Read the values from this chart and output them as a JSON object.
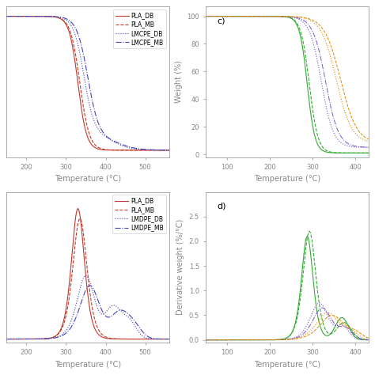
{
  "background_color": "#ffffff",
  "fontsize": 7,
  "tick_fontsize": 6,
  "legend_fontsize": 5.5,
  "subplot_a": {
    "xlim": [
      150,
      560
    ],
    "ylim": [
      -2,
      105
    ],
    "xticks": [
      200,
      300,
      400,
      500
    ],
    "legend": [
      "PLA_DB",
      "PLA_MB",
      "LMCPE_DB",
      "LMCPE_MB"
    ],
    "colors": [
      "#c0392b",
      "#c0392b",
      "#4040c0",
      "#4040c0"
    ],
    "styles": [
      "-",
      "--",
      ":",
      "-."
    ]
  },
  "subplot_b": {
    "xlim": [
      150,
      560
    ],
    "ylim": [
      -0.02,
      0.85
    ],
    "xticks": [
      200,
      300,
      400,
      500
    ],
    "legend": [
      "PLA_DB",
      "PLA_MB",
      "LMDPE_DB",
      "LMDPE_MB"
    ],
    "colors": [
      "#c0392b",
      "#c0392b",
      "#4040c0",
      "#4040c0"
    ],
    "styles": [
      "-",
      "--",
      ":",
      "-."
    ]
  },
  "subplot_c": {
    "xlim": [
      50,
      430
    ],
    "ylim": [
      -2,
      105
    ],
    "xticks": [
      100,
      200,
      300,
      400
    ],
    "yticks": [
      0,
      20,
      40,
      60,
      80,
      100
    ],
    "ylabel": "Weight (%)"
  },
  "subplot_d": {
    "xlim": [
      50,
      430
    ],
    "ylim": [
      -0.05,
      3.0
    ],
    "xticks": [
      100,
      200,
      300,
      400
    ],
    "yticks": [
      0.0,
      0.5,
      1.0,
      1.5,
      2.0,
      2.5
    ],
    "ylabel": "Derivative weight (%/°C)"
  }
}
